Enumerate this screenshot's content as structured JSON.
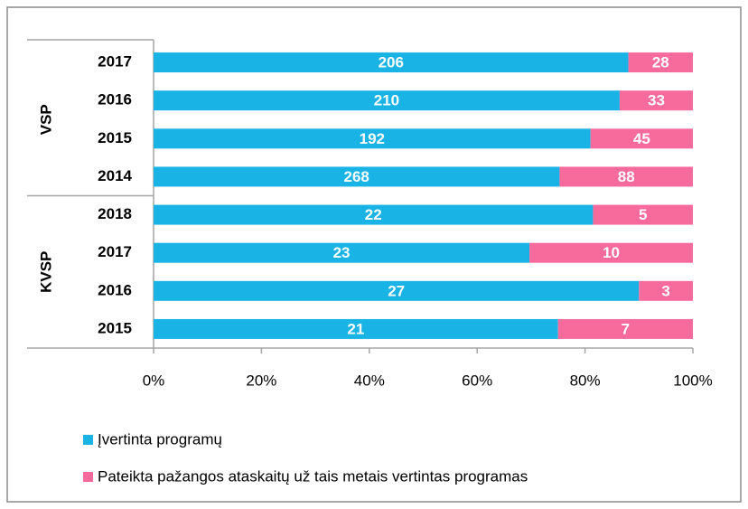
{
  "chart_data": {
    "type": "stacked-bar-100",
    "groups": [
      {
        "name": "VSP",
        "categories": [
          "2017",
          "2016",
          "2015",
          "2014"
        ]
      },
      {
        "name": "KVSP",
        "categories": [
          "2018",
          "2017",
          "2016",
          "2015"
        ]
      }
    ],
    "series": [
      {
        "name": "Įvertinta programų",
        "color": "#1ab3e6",
        "values": [
          206,
          210,
          192,
          268,
          22,
          23,
          27,
          21
        ]
      },
      {
        "name": "Pateikta pažangos ataskaitų už tais metais vertintas programas",
        "color": "#f76b9c",
        "values": [
          28,
          33,
          45,
          88,
          5,
          10,
          3,
          7
        ]
      }
    ],
    "xlim": [
      0,
      100
    ],
    "xticks": [
      {
        "value": 0,
        "label": "0%"
      },
      {
        "value": 20,
        "label": "20%"
      },
      {
        "value": 40,
        "label": "40%"
      },
      {
        "value": 60,
        "label": "60%"
      },
      {
        "value": 80,
        "label": "80%"
      },
      {
        "value": 100,
        "label": "100%"
      }
    ]
  }
}
